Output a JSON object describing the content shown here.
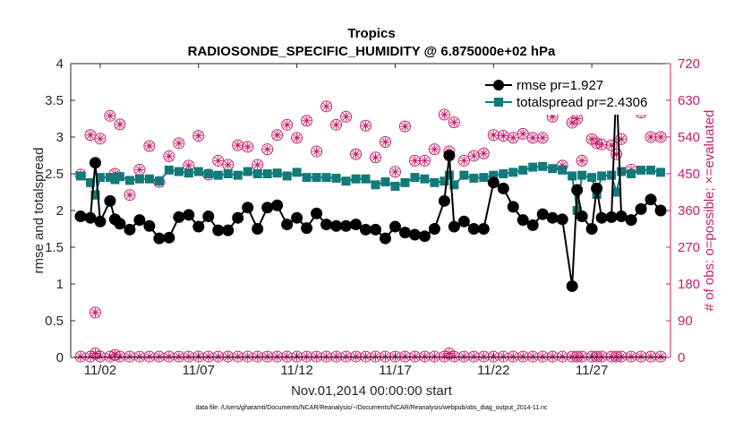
{
  "chart_data": {
    "type": "line",
    "title": "Tropics",
    "subtitle": "RADIOSONDE_SPECIFIC_HUMIDITY @ 6.875000e+02 hPa",
    "xlabel": "Nov.01,2014 00:00:00 start",
    "ylabel": "rmse and totalspread",
    "ylabel_right": "# of obs: o=possible; ×=evaluated",
    "footnote": "data file: /Users/gharamti/Documents/NCAR/Reanalysis/~/Documents/NCAR/Reanalysis/webpub/obs_diag_output_2014-11.nc",
    "xlim": [
      0.5,
      31.0
    ],
    "ylim": [
      0,
      4
    ],
    "ylim_right": [
      0,
      720
    ],
    "x_ticks": [
      2,
      7,
      12,
      17,
      22,
      27
    ],
    "x_tick_labels": [
      "11/02",
      "11/07",
      "11/12",
      "11/17",
      "11/22",
      "11/27"
    ],
    "y_ticks": [
      "0",
      "0.5",
      "1",
      "1.5",
      "2",
      "2.5",
      "3",
      "3.5",
      "4"
    ],
    "y_ticks_right": [
      "0",
      "90",
      "180",
      "270",
      "360",
      "450",
      "540",
      "630",
      "720"
    ],
    "legend": [
      "rmse pr=1.927",
      "totalspread pr=2.4306"
    ],
    "legend_position": "top-right",
    "grid": false,
    "series": [
      {
        "name": "rmse pr=1.927",
        "color": "#000000",
        "marker": "circle",
        "x": [
          1.0,
          1.5,
          1.75,
          2.0,
          2.5,
          2.75,
          3.0,
          3.5,
          4.0,
          4.5,
          5.0,
          5.5,
          6.0,
          6.5,
          7.0,
          7.5,
          8.0,
          8.5,
          9.0,
          9.5,
          10.0,
          10.5,
          11.0,
          11.5,
          12.0,
          12.5,
          13.0,
          13.5,
          14.0,
          14.5,
          15.0,
          15.5,
          16.0,
          16.5,
          17.0,
          17.5,
          18.0,
          18.5,
          19.0,
          19.5,
          19.75,
          20.0,
          20.5,
          21.0,
          21.5,
          22.0,
          22.5,
          23.0,
          23.5,
          24.0,
          24.5,
          25.0,
          25.5,
          26.0,
          26.25,
          26.5,
          27.0,
          27.25,
          27.5,
          28.0,
          28.25,
          28.5,
          29.0,
          29.5,
          30.0,
          30.5
        ],
        "values": [
          1.92,
          1.9,
          2.65,
          1.85,
          2.13,
          1.88,
          1.82,
          1.74,
          1.87,
          1.79,
          1.62,
          1.63,
          1.91,
          1.94,
          1.78,
          1.92,
          1.73,
          1.73,
          1.9,
          2.04,
          1.75,
          2.04,
          2.07,
          1.81,
          1.9,
          1.76,
          1.96,
          1.81,
          1.79,
          1.79,
          1.81,
          1.74,
          1.74,
          1.62,
          1.78,
          1.7,
          1.67,
          1.65,
          1.75,
          2.13,
          2.75,
          1.78,
          1.85,
          1.75,
          1.75,
          2.38,
          2.3,
          2.05,
          1.87,
          1.8,
          1.95,
          1.9,
          1.88,
          0.97,
          2.28,
          1.92,
          1.75,
          2.3,
          1.9,
          1.91,
          3.77,
          1.92,
          1.87,
          2.02,
          2.15,
          2.0
        ]
      },
      {
        "name": "totalspread pr=2.4306",
        "color": "#137a7a",
        "marker": "square",
        "x": [
          1.0,
          1.5,
          1.75,
          2.0,
          2.5,
          2.75,
          3.0,
          3.5,
          4.0,
          4.5,
          5.0,
          5.5,
          6.0,
          6.5,
          7.0,
          7.5,
          8.0,
          8.5,
          9.0,
          9.5,
          10.0,
          10.5,
          11.0,
          11.5,
          12.0,
          12.5,
          13.0,
          13.5,
          14.0,
          14.5,
          15.0,
          15.5,
          16.0,
          16.5,
          17.0,
          17.5,
          18.0,
          18.5,
          19.0,
          19.5,
          19.75,
          20.0,
          20.5,
          21.0,
          21.5,
          22.0,
          22.5,
          23.0,
          23.5,
          24.0,
          24.5,
          25.0,
          25.5,
          26.0,
          26.25,
          26.5,
          27.0,
          27.25,
          27.5,
          28.0,
          28.25,
          28.5,
          29.0,
          29.5,
          30.0,
          30.5
        ],
        "values": [
          2.47,
          2.38,
          2.21,
          2.45,
          2.45,
          2.42,
          2.46,
          2.41,
          2.43,
          2.43,
          2.4,
          2.55,
          2.53,
          2.51,
          2.53,
          2.5,
          2.48,
          2.5,
          2.48,
          2.53,
          2.5,
          2.5,
          2.51,
          2.47,
          2.52,
          2.45,
          2.45,
          2.45,
          2.44,
          2.4,
          2.43,
          2.43,
          2.35,
          2.39,
          2.33,
          2.38,
          2.45,
          2.43,
          2.38,
          2.4,
          2.48,
          2.35,
          2.48,
          2.44,
          2.45,
          2.48,
          2.5,
          2.52,
          2.55,
          2.59,
          2.6,
          2.57,
          2.55,
          2.47,
          2.0,
          2.48,
          2.45,
          2.22,
          2.47,
          2.48,
          2.25,
          2.53,
          2.5,
          2.55,
          2.55,
          2.52
        ]
      },
      {
        "name": "# of obs possible",
        "color": "#c41e6a",
        "marker": "circle-open",
        "axis": "right",
        "x": [
          1.0,
          1.5,
          1.75,
          2.0,
          2.5,
          2.75,
          3.0,
          3.5,
          4.0,
          4.5,
          5.0,
          5.5,
          6.0,
          6.5,
          7.0,
          7.5,
          8.0,
          8.5,
          9.0,
          9.5,
          10.0,
          10.5,
          11.0,
          11.5,
          12.0,
          12.5,
          13.0,
          13.5,
          14.0,
          14.5,
          15.0,
          15.5,
          16.0,
          16.5,
          17.0,
          17.5,
          18.0,
          18.5,
          19.0,
          19.5,
          19.75,
          20.0,
          20.5,
          21.0,
          21.5,
          22.0,
          22.5,
          23.0,
          23.5,
          24.0,
          24.5,
          25.0,
          25.5,
          26.0,
          26.25,
          26.5,
          27.0,
          27.25,
          27.5,
          28.0,
          28.25,
          28.5,
          29.0,
          29.5,
          30.0,
          30.5
        ],
        "values": [
          448,
          545,
          110,
          536,
          592,
          450,
          571,
          398,
          460,
          518,
          430,
          493,
          525,
          470,
          543,
          448,
          482,
          472,
          520,
          516,
          472,
          510,
          545,
          570,
          538,
          580,
          505,
          615,
          570,
          590,
          498,
          568,
          490,
          528,
          455,
          566,
          482,
          482,
          510,
          595,
          505,
          576,
          482,
          494,
          500,
          545,
          543,
          538,
          548,
          538,
          538,
          590,
          470,
          575,
          585,
          482,
          535,
          525,
          522,
          520,
          498,
          535,
          460,
          600,
          540,
          540
        ]
      },
      {
        "name": "# of obs evaluated",
        "color": "#c41e6a",
        "marker": "asterisk",
        "axis": "right",
        "x": [
          1.0,
          1.5,
          1.75,
          2.0,
          2.5,
          2.75,
          3.0,
          3.5,
          4.0,
          4.5,
          5.0,
          5.5,
          6.0,
          6.5,
          7.0,
          7.5,
          8.0,
          8.5,
          9.0,
          9.5,
          10.0,
          10.5,
          11.0,
          11.5,
          12.0,
          12.5,
          13.0,
          13.5,
          14.0,
          14.5,
          15.0,
          15.5,
          16.0,
          16.5,
          17.0,
          17.5,
          18.0,
          18.5,
          19.0,
          19.5,
          19.75,
          20.0,
          20.5,
          21.0,
          21.5,
          22.0,
          22.5,
          23.0,
          23.5,
          24.0,
          24.5,
          25.0,
          25.5,
          26.0,
          26.25,
          26.5,
          27.0,
          27.25,
          27.5,
          28.0,
          28.25,
          28.5,
          29.0,
          29.5,
          30.0,
          30.5
        ],
        "values": [
          448,
          545,
          110,
          536,
          592,
          450,
          571,
          398,
          460,
          518,
          430,
          493,
          525,
          470,
          543,
          448,
          482,
          472,
          520,
          516,
          472,
          510,
          545,
          570,
          538,
          580,
          505,
          615,
          570,
          590,
          498,
          568,
          490,
          528,
          455,
          566,
          482,
          482,
          510,
          595,
          505,
          576,
          482,
          494,
          500,
          545,
          543,
          538,
          548,
          538,
          538,
          590,
          470,
          575,
          585,
          482,
          535,
          525,
          522,
          520,
          498,
          535,
          460,
          600,
          540,
          540
        ]
      }
    ],
    "bottom_obs": {
      "x": [
        1.0,
        1.5,
        1.75,
        2.0,
        2.5,
        2.75,
        3.0,
        3.5,
        4.0,
        4.5,
        5.0,
        5.5,
        6.0,
        6.5,
        7.0,
        7.5,
        8.0,
        8.5,
        9.0,
        9.5,
        10.0,
        10.5,
        11.0,
        11.5,
        12.0,
        12.5,
        13.0,
        13.5,
        14.0,
        14.5,
        15.0,
        15.5,
        16.0,
        16.5,
        17.0,
        17.5,
        18.0,
        18.5,
        19.0,
        19.5,
        19.75,
        20.0,
        20.5,
        21.0,
        21.5,
        22.0,
        22.5,
        23.0,
        23.5,
        24.0,
        24.5,
        25.0,
        25.5,
        26.0,
        26.25,
        26.5,
        27.0,
        27.25,
        27.5,
        28.0,
        28.25,
        28.5,
        29.0,
        29.5,
        30.0,
        30.5
      ],
      "values": [
        2,
        2,
        10,
        2,
        2,
        6,
        2,
        2,
        2,
        2,
        2,
        2,
        2,
        2,
        2,
        2,
        2,
        2,
        2,
        2,
        2,
        2,
        2,
        2,
        2,
        2,
        2,
        2,
        2,
        2,
        2,
        2,
        2,
        2,
        2,
        2,
        2,
        2,
        2,
        2,
        10,
        2,
        2,
        2,
        2,
        2,
        2,
        2,
        2,
        2,
        2,
        2,
        2,
        2,
        2,
        2,
        2,
        2,
        2,
        2,
        2,
        2,
        2,
        2,
        2,
        2
      ]
    }
  }
}
